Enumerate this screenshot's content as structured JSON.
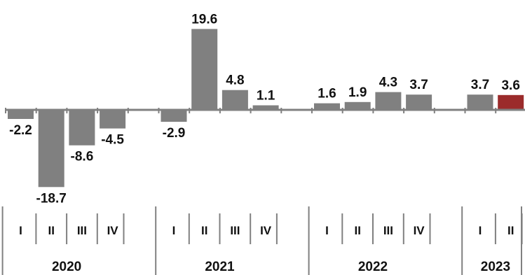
{
  "chart_data": {
    "type": "bar",
    "title": "",
    "xlabel": "",
    "ylabel": "",
    "ylim": [
      -18.7,
      19.6
    ],
    "grid": false,
    "legend": "none",
    "categories": [
      "I 2020",
      "II 2020",
      "III 2020",
      "IV 2020",
      "I 2021",
      "II 2021",
      "III 2021",
      "IV 2021",
      "I 2022",
      "II 2022",
      "III 2022",
      "IV 2022",
      "I 2023",
      "II 2023"
    ],
    "values": [
      -2.2,
      -18.7,
      -8.6,
      -4.5,
      -2.9,
      19.6,
      4.8,
      1.1,
      1.6,
      1.9,
      4.3,
      3.7,
      3.7,
      3.6
    ],
    "value_labels": [
      "-2.2",
      "-18.7",
      "-8.6",
      "-4.5",
      "-2.9",
      "19.6",
      "4.8",
      "1.1",
      "1.6",
      "1.9",
      "4.3",
      "3.7",
      "3.7",
      "3.6"
    ],
    "quarters": [
      "I",
      "II",
      "III",
      "IV",
      "I",
      "II",
      "III",
      "IV",
      "I",
      "II",
      "III",
      "IV",
      "I",
      "II"
    ],
    "years": [
      {
        "label": "2020",
        "quarter_count": 4
      },
      {
        "label": "2021",
        "quarter_count": 4
      },
      {
        "label": "2022",
        "quarter_count": 4
      },
      {
        "label": "2023",
        "quarter_count": 2
      }
    ],
    "colors": {
      "bar": "#808080",
      "highlight": "#9b2b2b",
      "axis": "#808080",
      "text": "#111111"
    },
    "highlight_index": 13
  }
}
